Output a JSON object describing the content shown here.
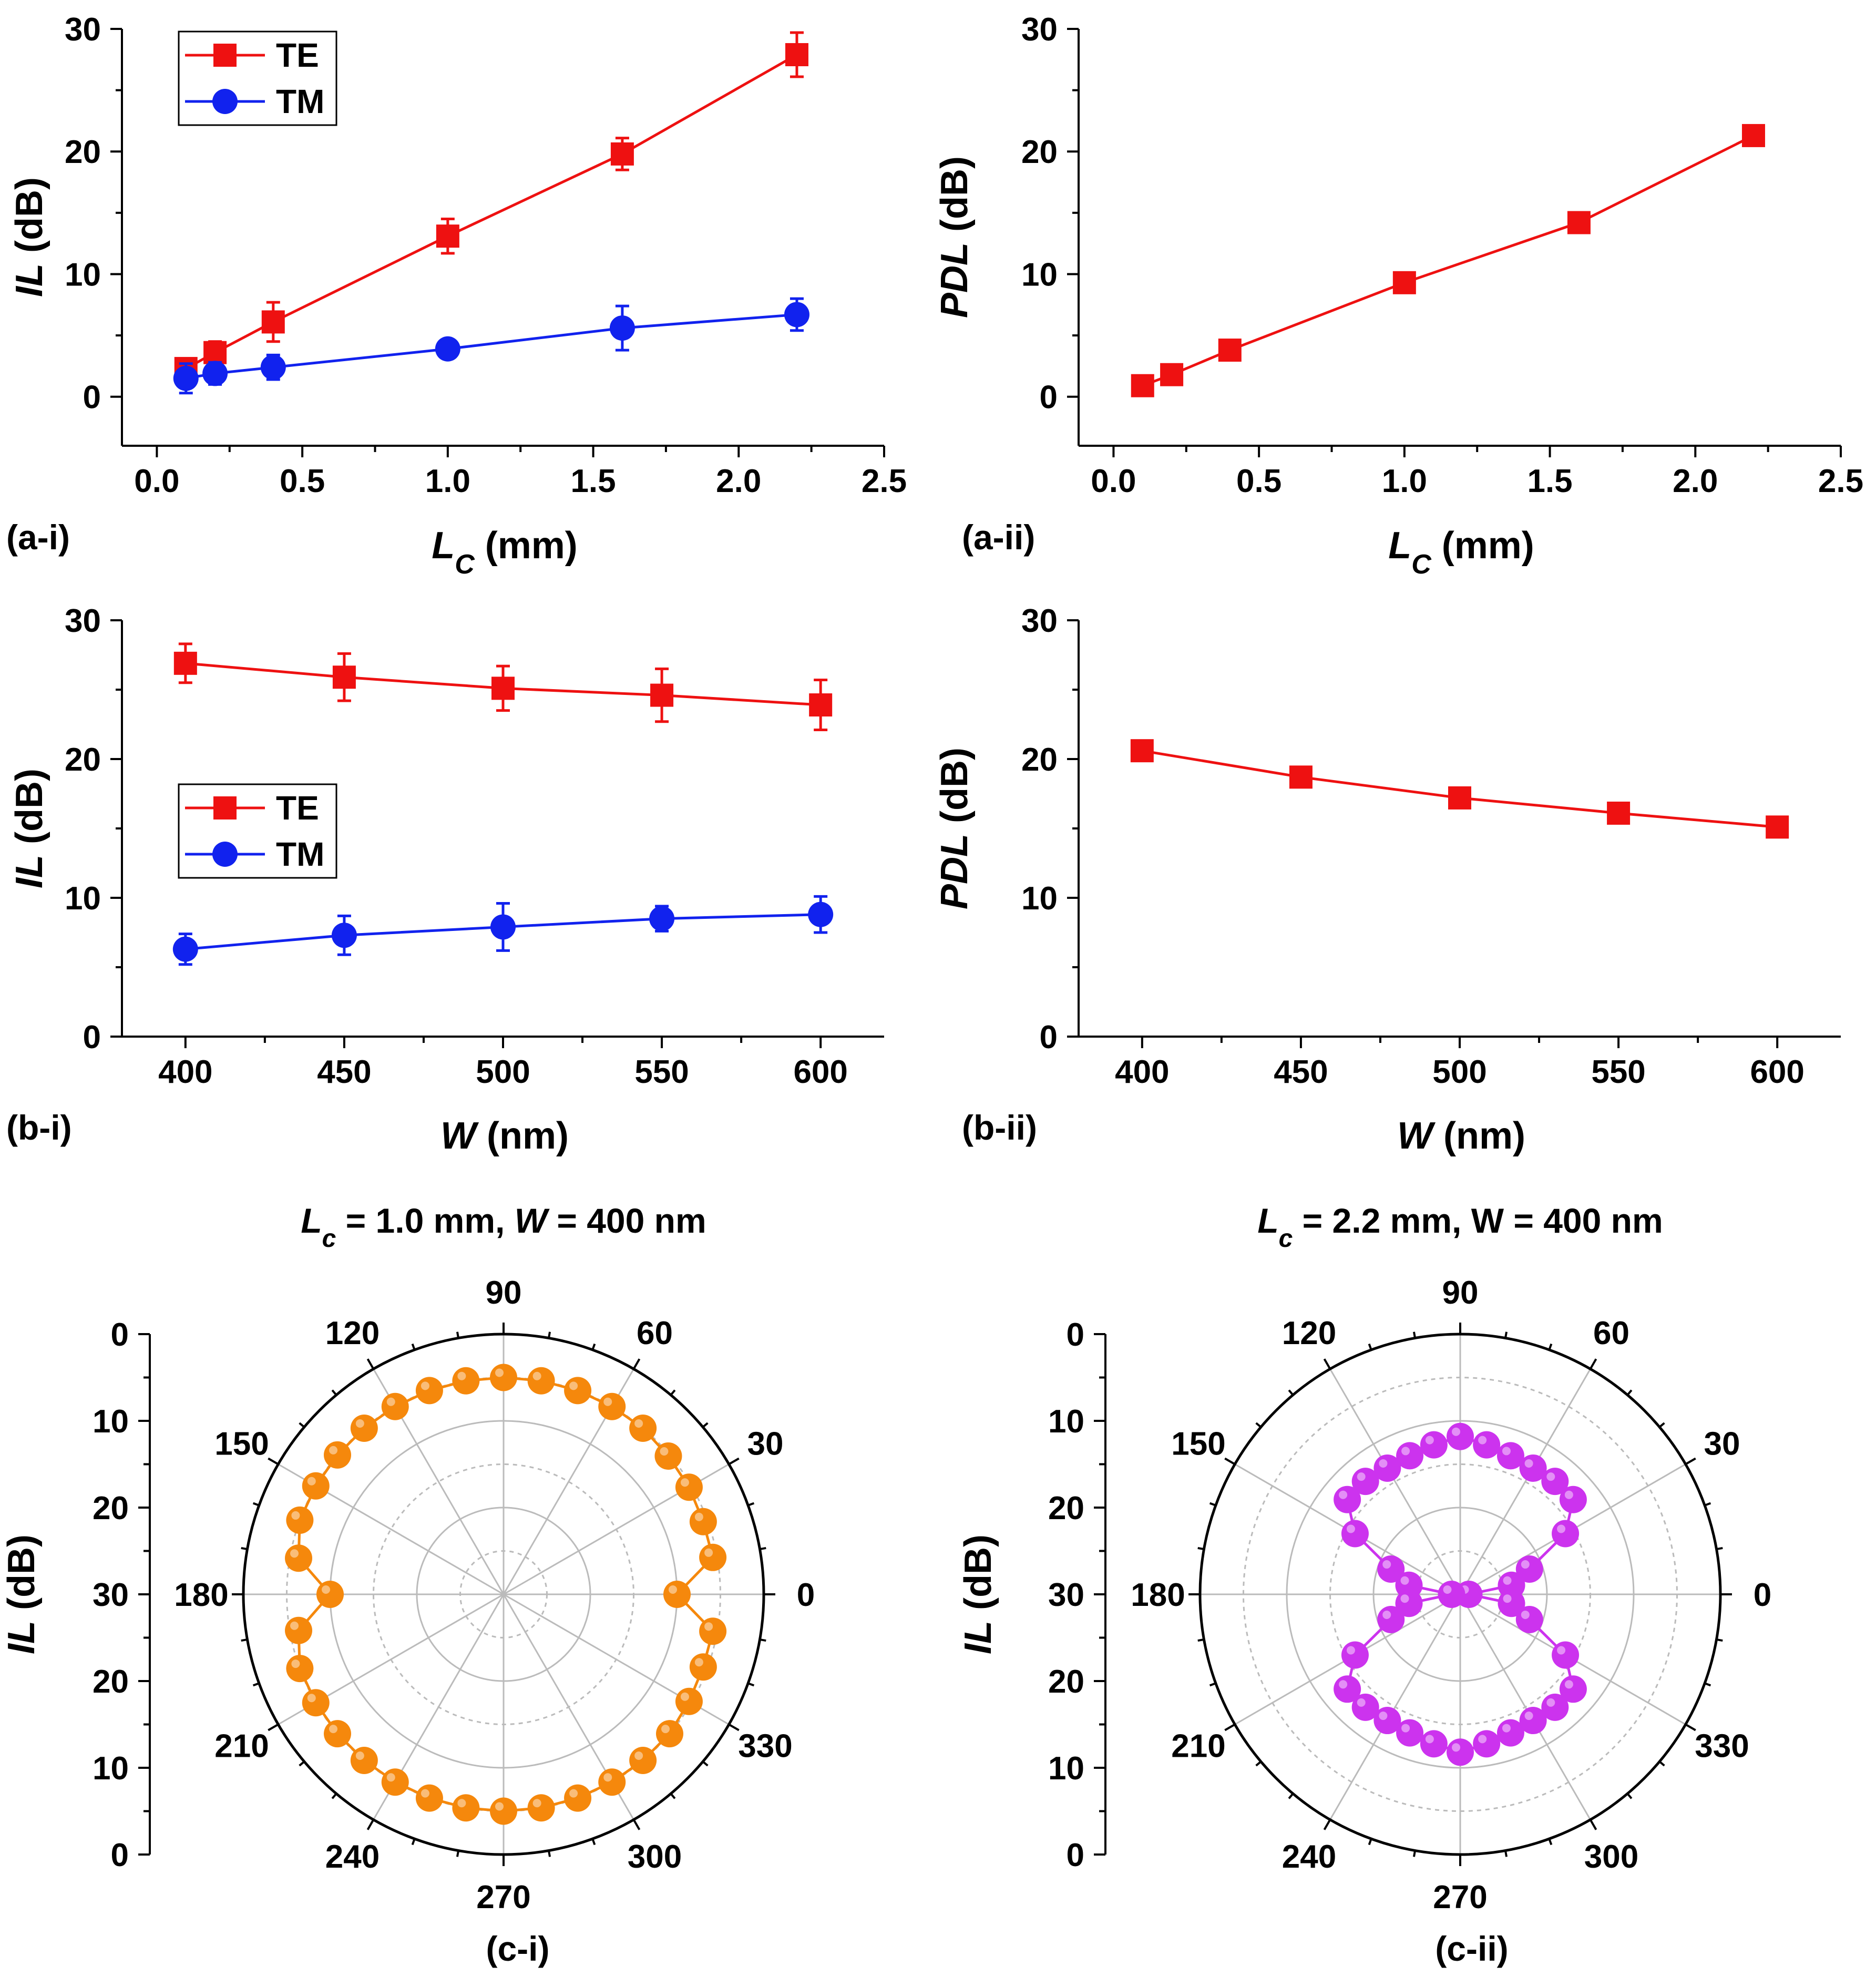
{
  "colors": {
    "te": "#ee1111",
    "tm": "#1122ee",
    "orange": "#f5880c",
    "purple": "#cc33ee",
    "axis": "#000000",
    "grid": "#bbbbbb"
  },
  "charts": [
    {
      "type": "line",
      "panel_label": "(a-i)",
      "xlabel_var": "L",
      "xlabel_sub": "C",
      "xlabel_unit": " (mm)",
      "ylabel_var": "IL",
      "ylabel_unit": " (dB)",
      "xlim": [
        -0.12,
        2.5
      ],
      "ylim": [
        -4,
        30
      ],
      "xticks": [
        "0.0",
        "0.5",
        "1.0",
        "1.5",
        "2.0",
        "2.5"
      ],
      "yticks": [
        "0",
        "10",
        "20",
        "30"
      ],
      "legend": [
        "TE",
        "TM"
      ],
      "series": [
        {
          "name": "TE",
          "marker": "square",
          "x": [
            0.1,
            0.2,
            0.4,
            1.0,
            1.6,
            2.2
          ],
          "y": [
            2.3,
            3.6,
            6.1,
            13.1,
            19.8,
            27.9
          ],
          "err": [
            0.8,
            0.9,
            1.6,
            1.4,
            1.3,
            1.8
          ]
        },
        {
          "name": "TM",
          "marker": "circle",
          "x": [
            0.1,
            0.2,
            0.4,
            1.0,
            1.6,
            2.2
          ],
          "y": [
            1.5,
            1.9,
            2.4,
            3.9,
            5.6,
            6.7
          ],
          "err": [
            1.2,
            0.9,
            1.0,
            0.7,
            1.8,
            1.3
          ]
        }
      ]
    },
    {
      "type": "line",
      "panel_label": "(a-ii)",
      "xlabel_var": "L",
      "xlabel_sub": "C",
      "xlabel_unit": " (mm)",
      "ylabel_var": "PDL",
      "ylabel_unit": " (dB)",
      "xlim": [
        -0.12,
        2.5
      ],
      "ylim": [
        -4,
        30
      ],
      "xticks": [
        "0.0",
        "0.5",
        "1.0",
        "1.5",
        "2.0",
        "2.5"
      ],
      "yticks": [
        "0",
        "10",
        "20",
        "30"
      ],
      "legend": [],
      "series": [
        {
          "name": "PDL",
          "marker": "square",
          "x": [
            0.1,
            0.2,
            0.4,
            1.0,
            1.6,
            2.2
          ],
          "y": [
            0.9,
            1.8,
            3.8,
            9.3,
            14.2,
            21.3
          ],
          "err": [
            0,
            0,
            0,
            0,
            0,
            0
          ]
        }
      ]
    },
    {
      "type": "line",
      "panel_label": "(b-i)",
      "xlabel_var": "W",
      "xlabel_sub": "",
      "xlabel_unit": " (nm)",
      "ylabel_var": "IL",
      "ylabel_unit": " (dB)",
      "xlim": [
        380,
        620
      ],
      "ylim": [
        0,
        30
      ],
      "xticks": [
        "400",
        "450",
        "500",
        "550",
        "600"
      ],
      "yticks": [
        "0",
        "10",
        "20",
        "30"
      ],
      "legend": [
        "TE",
        "TM"
      ],
      "series": [
        {
          "name": "TE",
          "marker": "square",
          "x": [
            400,
            450,
            500,
            550,
            600
          ],
          "y": [
            26.9,
            25.9,
            25.1,
            24.6,
            23.9
          ],
          "err": [
            1.4,
            1.7,
            1.6,
            1.9,
            1.8
          ]
        },
        {
          "name": "TM",
          "marker": "circle",
          "x": [
            400,
            450,
            500,
            550,
            600
          ],
          "y": [
            6.3,
            7.3,
            7.9,
            8.5,
            8.8
          ],
          "err": [
            1.1,
            1.4,
            1.7,
            0.9,
            1.3
          ]
        }
      ]
    },
    {
      "type": "line",
      "panel_label": "(b-ii)",
      "xlabel_var": "W",
      "xlabel_sub": "",
      "xlabel_unit": " (nm)",
      "ylabel_var": "PDL",
      "ylabel_unit": " (dB)",
      "xlim": [
        380,
        620
      ],
      "ylim": [
        0,
        30
      ],
      "xticks": [
        "400",
        "450",
        "500",
        "550",
        "600"
      ],
      "yticks": [
        "0",
        "10",
        "20",
        "30"
      ],
      "legend": [],
      "series": [
        {
          "name": "PDL",
          "marker": "square",
          "x": [
            400,
            450,
            500,
            550,
            600
          ],
          "y": [
            20.6,
            18.7,
            17.2,
            16.1,
            15.1
          ],
          "err": [
            0,
            0,
            0,
            0,
            0
          ]
        }
      ]
    },
    {
      "type": "polar",
      "panel_label": "(c-i)",
      "title_var1": "L",
      "title_sub": "c",
      "title_mid": " = 1.0 mm, ",
      "title_var2": "W",
      "title_end": " = 400 nm",
      "ylabel_var": "IL",
      "ylabel_unit": " (dB)",
      "rlim": [
        0,
        30
      ],
      "r_ticks": [
        "0",
        "10",
        "20",
        "30",
        "20",
        "10",
        "0"
      ],
      "angle_ticks": [
        "0",
        "30",
        "60",
        "90",
        "120",
        "150",
        "180",
        "210",
        "240",
        "300",
        "270",
        "330"
      ],
      "angles_deg": [
        0,
        10,
        20,
        30,
        40,
        50,
        60,
        70,
        80,
        90,
        100,
        110,
        120,
        130,
        140,
        150,
        160,
        170,
        180,
        190,
        200,
        210,
        220,
        230,
        240,
        250,
        260,
        270,
        280,
        290,
        300,
        310,
        320,
        330,
        340,
        350
      ],
      "il_db": [
        10,
        5.5,
        5.5,
        5.3,
        5.2,
        5.0,
        5.0,
        5.0,
        5.0,
        5.0,
        5.0,
        5.0,
        5.0,
        5.0,
        5.0,
        5.0,
        5.0,
        6.0,
        10,
        6.0,
        5.0,
        5.0,
        5.0,
        5.0,
        5.0,
        5.0,
        5.0,
        5.0,
        5.0,
        5.0,
        5.0,
        5.0,
        5.0,
        5.3,
        5.5,
        5.5
      ]
    },
    {
      "type": "polar",
      "panel_label": "(c-ii)",
      "title_var1": "L",
      "title_sub": "c",
      "title_mid": " = 2.2 mm, ",
      "title_var2": "",
      "title_end": "W = 400 nm",
      "ylabel_var": "IL",
      "ylabel_unit": " (dB)",
      "rlim": [
        0,
        30
      ],
      "r_ticks": [
        "0",
        "10",
        "20",
        "30",
        "20",
        "10",
        "0"
      ],
      "angle_ticks": [
        "0",
        "30",
        "60",
        "90",
        "120",
        "150",
        "180",
        "210",
        "240",
        "300",
        "270",
        "330"
      ],
      "angles_deg": [
        0,
        10,
        20,
        30,
        40,
        50,
        60,
        70,
        80,
        90,
        100,
        110,
        120,
        130,
        140,
        150,
        160,
        170,
        180,
        190,
        200,
        210,
        220,
        230,
        240,
        250,
        260,
        270,
        280,
        290,
        300,
        310,
        320,
        330,
        340,
        350
      ],
      "il_db": [
        29,
        24,
        21.5,
        16,
        13,
        13,
        13.2,
        13,
        12.5,
        11.8,
        12.5,
        13,
        13.2,
        13,
        13,
        16,
        21.5,
        24,
        29,
        24,
        21.5,
        16,
        13,
        13,
        13.2,
        13,
        12.5,
        11.8,
        12.5,
        13,
        13.2,
        13,
        13,
        16,
        21.5,
        24
      ]
    }
  ]
}
